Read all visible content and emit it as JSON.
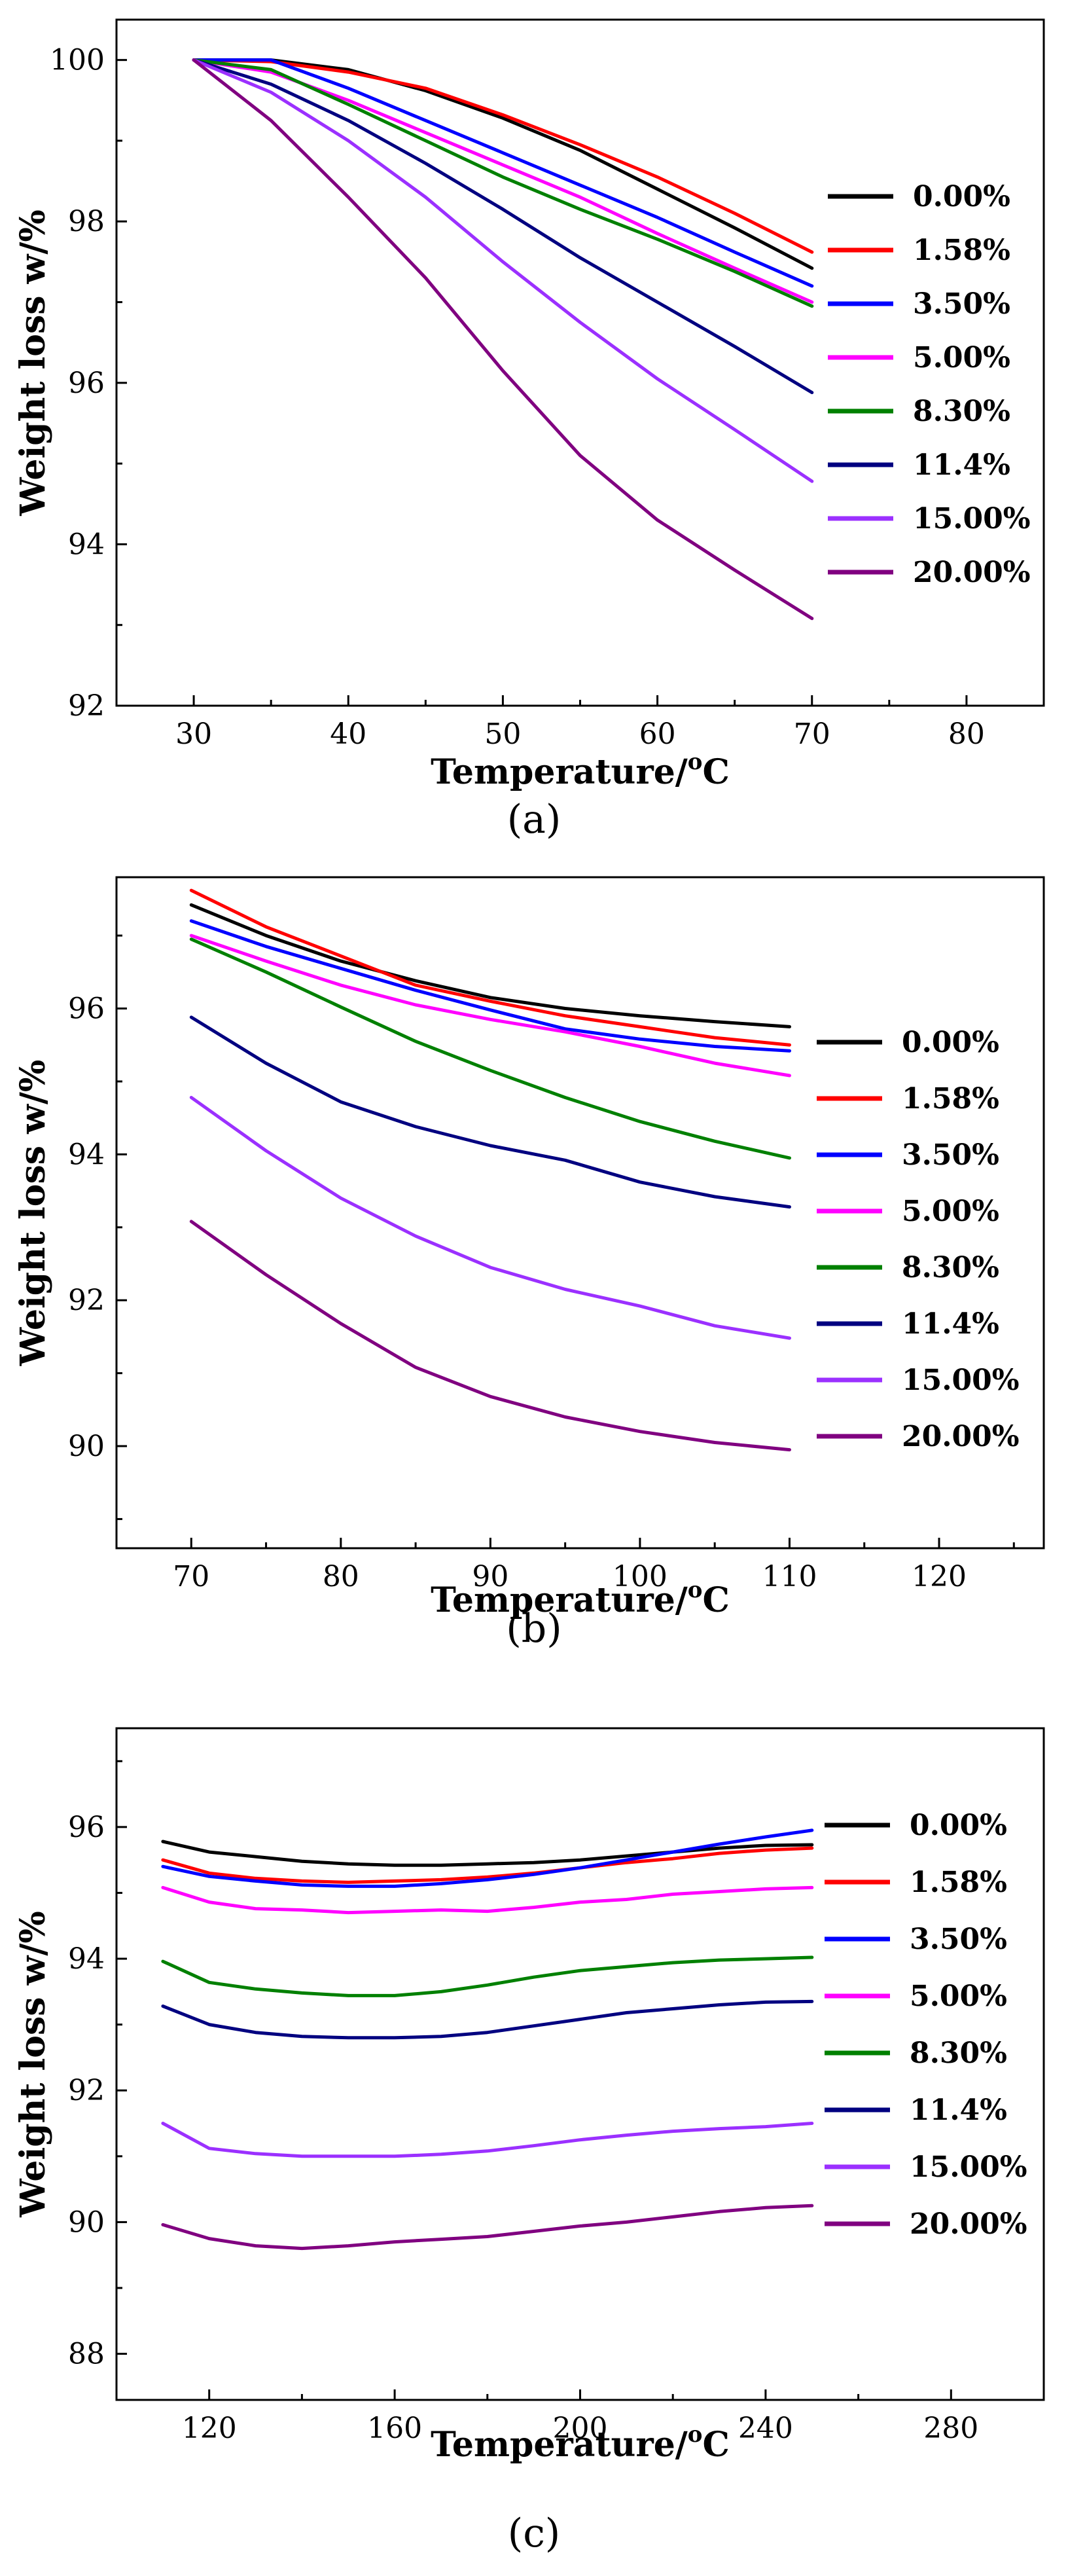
{
  "chart_data": [
    {
      "type": "line",
      "panel_label": "(a)",
      "xlabel": "Temperature/",
      "xlabel_sup": "o",
      "xlabel_unit": "C",
      "ylabel": "Weight loss w/%",
      "xlim": [
        25,
        85
      ],
      "ylim": [
        92,
        100.5
      ],
      "xticks": [
        30,
        40,
        50,
        60,
        70,
        80
      ],
      "yticks": [
        92,
        94,
        96,
        98,
        100
      ],
      "x": [
        30,
        35,
        40,
        45,
        50,
        55,
        60,
        65,
        70
      ],
      "series": [
        {
          "name": "0.00%",
          "color": "#000000",
          "values": [
            100,
            100,
            99.88,
            99.62,
            99.28,
            98.88,
            98.4,
            97.92,
            97.42
          ]
        },
        {
          "name": "1.58%",
          "color": "#ff0000",
          "values": [
            100,
            99.98,
            99.85,
            99.65,
            99.32,
            98.95,
            98.55,
            98.1,
            97.62
          ]
        },
        {
          "name": "3.50%",
          "color": "#0000ff",
          "values": [
            100,
            100,
            99.65,
            99.25,
            98.85,
            98.45,
            98.05,
            97.62,
            97.2
          ]
        },
        {
          "name": "5.00%",
          "color": "#ff00ff",
          "values": [
            100,
            99.85,
            99.5,
            99.1,
            98.7,
            98.3,
            97.85,
            97.42,
            97.0
          ]
        },
        {
          "name": "8.30%",
          "color": "#008000",
          "values": [
            100,
            99.88,
            99.45,
            99.0,
            98.55,
            98.15,
            97.78,
            97.38,
            96.95
          ]
        },
        {
          "name": "11.4%",
          "color": "#000080",
          "values": [
            100,
            99.7,
            99.25,
            98.72,
            98.15,
            97.55,
            97.0,
            96.45,
            95.88
          ]
        },
        {
          "name": "15.00%",
          "color": "#9b30ff",
          "values": [
            100,
            99.6,
            99.0,
            98.3,
            97.5,
            96.75,
            96.05,
            95.42,
            94.78
          ]
        },
        {
          "name": "20.00%",
          "color": "#800080",
          "values": [
            100,
            99.25,
            98.3,
            97.3,
            96.15,
            95.1,
            94.3,
            93.68,
            93.08
          ]
        }
      ]
    },
    {
      "type": "line",
      "panel_label": "(b)",
      "xlabel": "Temperature/",
      "xlabel_sup": "o",
      "xlabel_unit": "C",
      "ylabel": "Weight loss w/%",
      "xlim": [
        65,
        127
      ],
      "ylim": [
        88.6,
        97.8
      ],
      "xticks": [
        70,
        80,
        90,
        100,
        110,
        120
      ],
      "yticks": [
        90,
        92,
        94,
        96
      ],
      "x": [
        70,
        75,
        80,
        85,
        90,
        95,
        100,
        105,
        110
      ],
      "series": [
        {
          "name": "0.00%",
          "color": "#000000",
          "values": [
            97.42,
            97.0,
            96.65,
            96.38,
            96.15,
            96.0,
            95.9,
            95.82,
            95.75
          ]
        },
        {
          "name": "1.58%",
          "color": "#ff0000",
          "values": [
            97.62,
            97.12,
            96.72,
            96.32,
            96.1,
            95.9,
            95.75,
            95.6,
            95.5
          ]
        },
        {
          "name": "3.50%",
          "color": "#0000ff",
          "values": [
            97.2,
            96.85,
            96.55,
            96.25,
            95.98,
            95.72,
            95.58,
            95.48,
            95.42
          ]
        },
        {
          "name": "5.00%",
          "color": "#ff00ff",
          "values": [
            97.0,
            96.65,
            96.32,
            96.05,
            95.85,
            95.68,
            95.48,
            95.25,
            95.08
          ]
        },
        {
          "name": "8.30%",
          "color": "#008000",
          "values": [
            96.95,
            96.5,
            96.02,
            95.55,
            95.15,
            94.78,
            94.45,
            94.18,
            93.95
          ]
        },
        {
          "name": "11.4%",
          "color": "#000080",
          "values": [
            95.88,
            95.25,
            94.72,
            94.38,
            94.12,
            93.92,
            93.62,
            93.42,
            93.28
          ]
        },
        {
          "name": "15.00%",
          "color": "#9b30ff",
          "values": [
            94.78,
            94.05,
            93.4,
            92.88,
            92.45,
            92.15,
            91.92,
            91.65,
            91.48
          ]
        },
        {
          "name": "20.00%",
          "color": "#800080",
          "values": [
            93.08,
            92.35,
            91.68,
            91.08,
            90.68,
            90.4,
            90.2,
            90.05,
            89.95
          ]
        }
      ]
    },
    {
      "type": "line",
      "panel_label": "(c)",
      "xlabel": "Temperature/",
      "xlabel_sup": "o",
      "xlabel_unit": "C",
      "ylabel": "Weight loss w/%",
      "xlim": [
        100,
        300
      ],
      "ylim": [
        87.3,
        97.5
      ],
      "xticks": [
        120,
        160,
        200,
        240,
        280
      ],
      "yticks": [
        88,
        90,
        92,
        94,
        96
      ],
      "x": [
        110,
        120,
        130,
        140,
        150,
        160,
        170,
        180,
        190,
        200,
        210,
        220,
        230,
        240,
        250
      ],
      "series": [
        {
          "name": "0.00%",
          "color": "#000000",
          "values": [
            95.78,
            95.62,
            95.55,
            95.48,
            95.44,
            95.42,
            95.42,
            95.44,
            95.46,
            95.5,
            95.56,
            95.62,
            95.68,
            95.72,
            95.73
          ]
        },
        {
          "name": "1.58%",
          "color": "#ff0000",
          "values": [
            95.5,
            95.3,
            95.22,
            95.18,
            95.16,
            95.18,
            95.2,
            95.24,
            95.3,
            95.38,
            95.46,
            95.52,
            95.6,
            95.65,
            95.68
          ]
        },
        {
          "name": "3.50%",
          "color": "#0000ff",
          "values": [
            95.4,
            95.25,
            95.18,
            95.12,
            95.1,
            95.1,
            95.14,
            95.2,
            95.28,
            95.38,
            95.5,
            95.62,
            95.74,
            95.85,
            95.95
          ]
        },
        {
          "name": "5.00%",
          "color": "#ff00ff",
          "values": [
            95.08,
            94.86,
            94.76,
            94.74,
            94.7,
            94.72,
            94.74,
            94.72,
            94.78,
            94.86,
            94.9,
            94.98,
            95.02,
            95.06,
            95.08
          ]
        },
        {
          "name": "8.30%",
          "color": "#008000",
          "values": [
            93.96,
            93.64,
            93.54,
            93.48,
            93.44,
            93.44,
            93.5,
            93.6,
            93.72,
            93.82,
            93.88,
            93.94,
            93.98,
            94.0,
            94.02
          ]
        },
        {
          "name": "11.4%",
          "color": "#000080",
          "values": [
            93.28,
            93.0,
            92.88,
            92.82,
            92.8,
            92.8,
            92.82,
            92.88,
            92.98,
            93.08,
            93.18,
            93.24,
            93.3,
            93.34,
            93.35
          ]
        },
        {
          "name": "15.00%",
          "color": "#9b30ff",
          "values": [
            91.5,
            91.12,
            91.04,
            91.0,
            91.0,
            91.0,
            91.03,
            91.08,
            91.16,
            91.25,
            91.32,
            91.38,
            91.42,
            91.45,
            91.5
          ]
        },
        {
          "name": "20.00%",
          "color": "#800080",
          "values": [
            89.96,
            89.75,
            89.64,
            89.6,
            89.64,
            89.7,
            89.74,
            89.78,
            89.86,
            89.94,
            90.0,
            90.08,
            90.16,
            90.22,
            90.25
          ]
        }
      ]
    }
  ]
}
